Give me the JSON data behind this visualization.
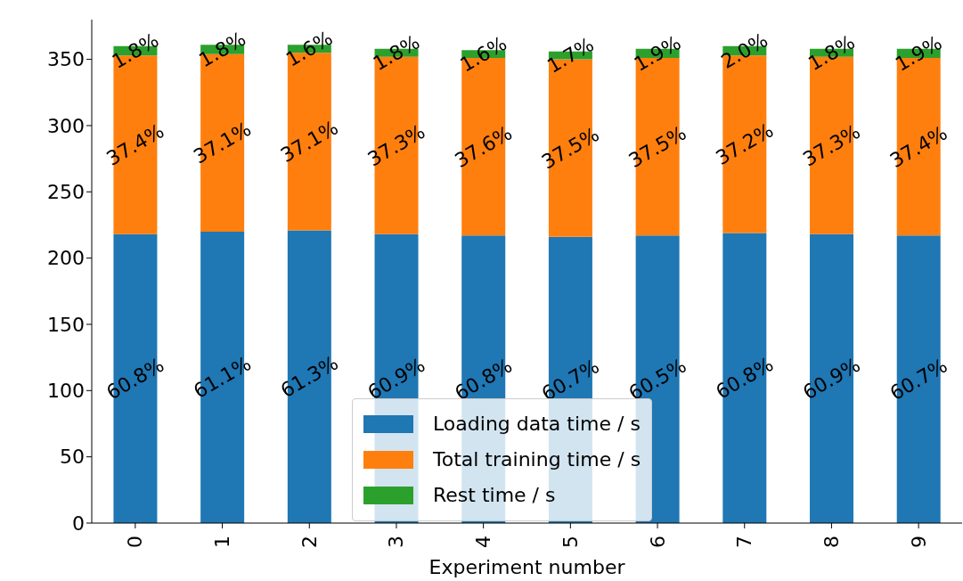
{
  "chart_data": {
    "type": "bar",
    "stacked": true,
    "xlabel": "Experiment number",
    "categories": [
      "0",
      "1",
      "2",
      "3",
      "4",
      "5",
      "6",
      "7",
      "8",
      "9"
    ],
    "series": [
      {
        "name": "Loading data time / s",
        "color": "#1f77b4",
        "values": [
          218,
          220,
          221,
          218,
          217,
          216,
          217,
          219,
          218,
          217
        ]
      },
      {
        "name": "Total training time / s",
        "color": "#ff7f0e",
        "values": [
          135,
          134,
          134,
          134,
          134,
          134,
          134,
          134,
          134,
          134
        ]
      },
      {
        "name": "Rest time / s",
        "color": "#2ca02c",
        "values": [
          7,
          7,
          6,
          6,
          6,
          6,
          7,
          7,
          6,
          7
        ]
      }
    ],
    "annotations": [
      "60.8%",
      "61.1%",
      "61.3%",
      "60.9%",
      "60.8%",
      "60.7%",
      "60.5%",
      "60.8%",
      "60.9%",
      "60.7%",
      "37.4%",
      "37.1%",
      "37.1%",
      "37.3%",
      "37.6%",
      "37.5%",
      "37.5%",
      "37.2%",
      "37.3%",
      "37.4%",
      "1.8%",
      "1.8%",
      "1.6%",
      "1.8%",
      "1.6%",
      "1.7%",
      "1.9%",
      "2.0%",
      "1.8%",
      "1.9%"
    ],
    "ylim": [
      0,
      380
    ],
    "yticks": [
      0,
      50,
      100,
      150,
      200,
      250,
      300,
      350
    ],
    "grid": false,
    "legend": "bottom"
  }
}
